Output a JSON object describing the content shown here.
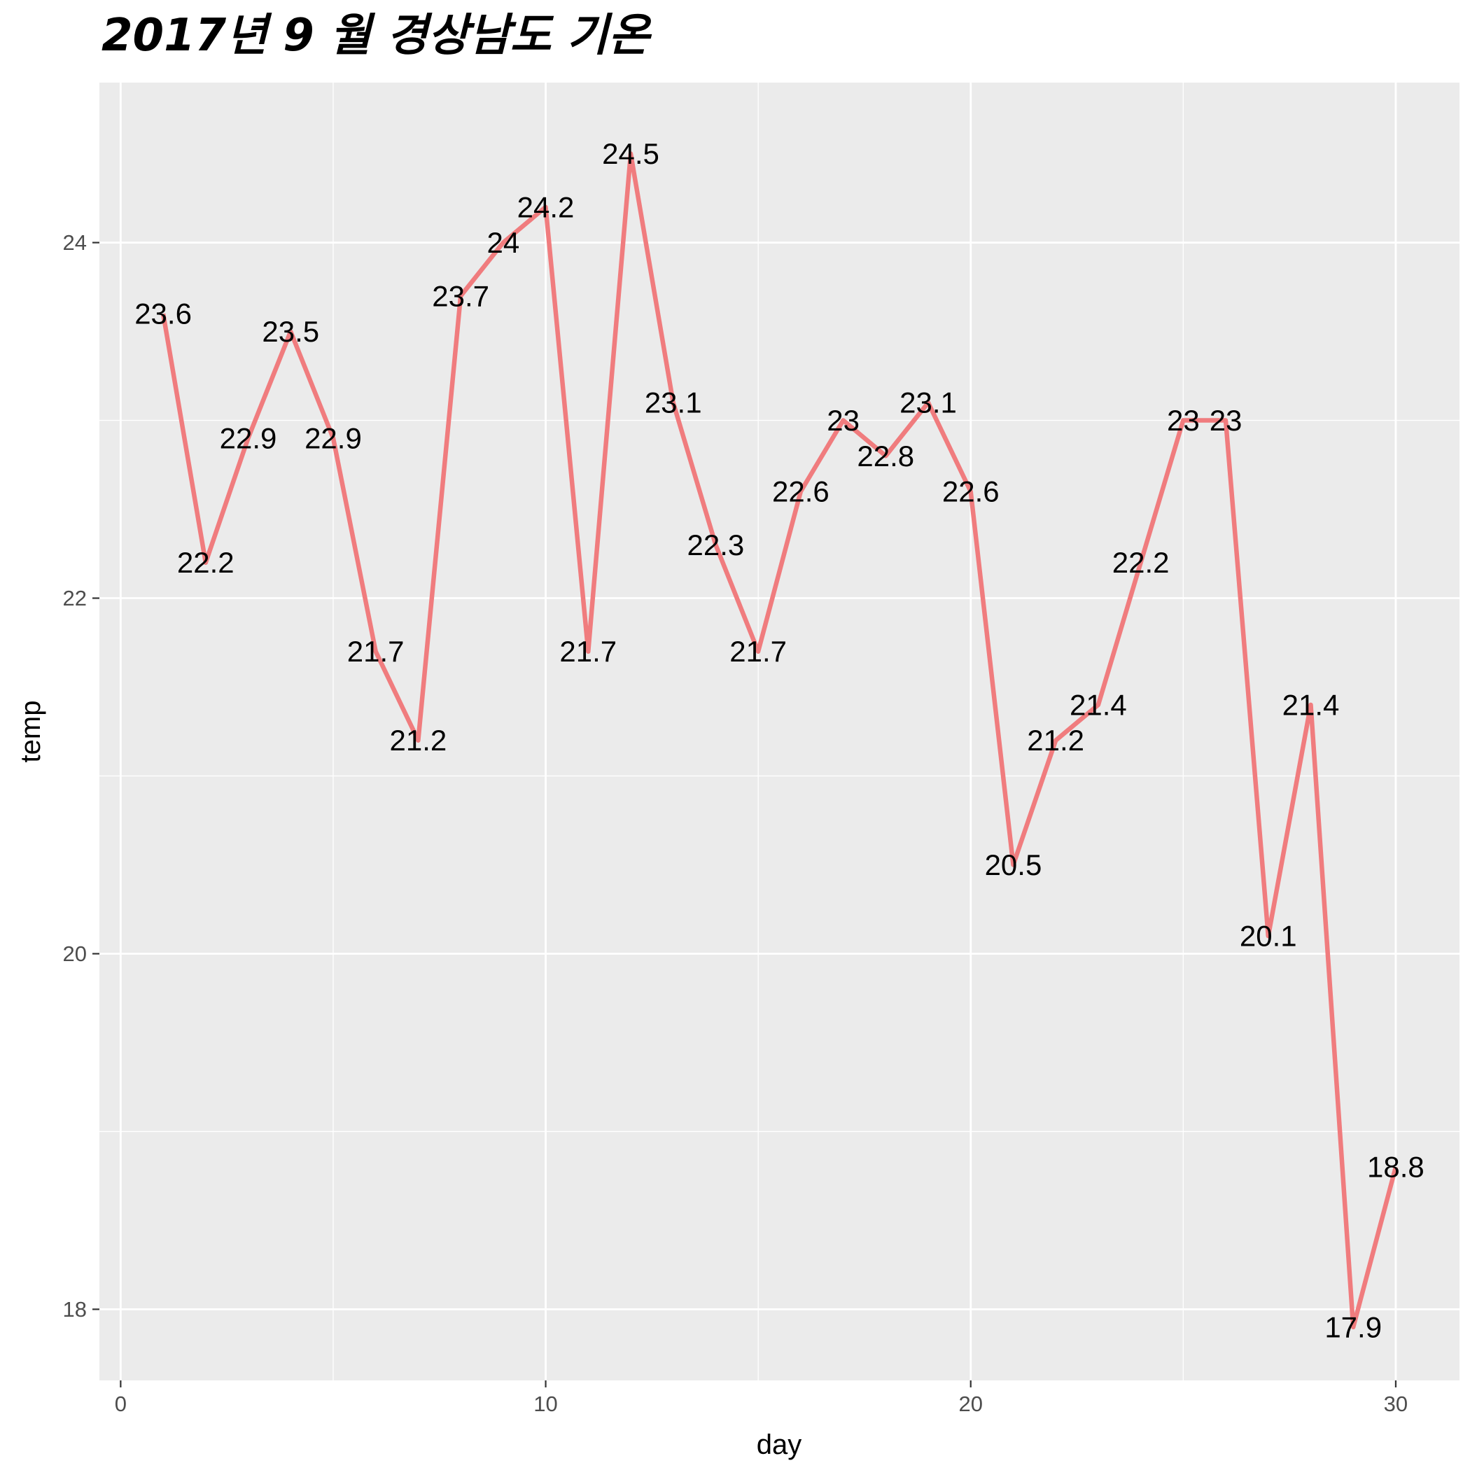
{
  "chart_data": {
    "type": "line",
    "title": "2017년 9 월 경상남도 기온",
    "xlabel": "day",
    "ylabel": "temp",
    "xlim": [
      -0.5,
      31.5
    ],
    "ylim": [
      17.6,
      24.9
    ],
    "x_ticks": [
      0,
      10,
      20,
      30
    ],
    "x_tick_labels": [
      "0",
      "10",
      "20",
      "30"
    ],
    "y_ticks": [
      18,
      20,
      22,
      24
    ],
    "y_tick_labels": [
      "18",
      "20",
      "22",
      "24"
    ],
    "grid": true,
    "legend": "none",
    "x": [
      1,
      2,
      3,
      4,
      5,
      6,
      7,
      8,
      9,
      10,
      11,
      12,
      13,
      14,
      15,
      16,
      17,
      18,
      19,
      20,
      21,
      22,
      23,
      24,
      25,
      26,
      27,
      28,
      29,
      30
    ],
    "y": [
      23.6,
      22.2,
      22.9,
      23.5,
      22.9,
      21.7,
      21.2,
      23.7,
      24.0,
      24.2,
      21.7,
      24.5,
      23.1,
      22.3,
      21.7,
      22.6,
      23.0,
      22.8,
      23.1,
      22.6,
      20.5,
      21.2,
      21.4,
      22.2,
      23.0,
      23.0,
      20.1,
      21.4,
      17.9,
      18.8
    ],
    "labels": [
      "23.6",
      "22.2",
      "22.9",
      "23.5",
      "22.9",
      "21.7",
      "21.2",
      "23.7",
      "24",
      "24.2",
      "21.7",
      "24.5",
      "23.1",
      "22.3",
      "21.7",
      "22.6",
      "23",
      "22.8",
      "23.1",
      "22.6",
      "20.5",
      "21.2",
      "21.4",
      "22.2",
      "23",
      "23",
      "20.1",
      "21.4",
      "17.9",
      "18.8"
    ],
    "colors": {
      "line": "#F07C7E",
      "panel": "#EBEBEB",
      "grid": "#FFFFFF",
      "tick": "#333333"
    }
  }
}
